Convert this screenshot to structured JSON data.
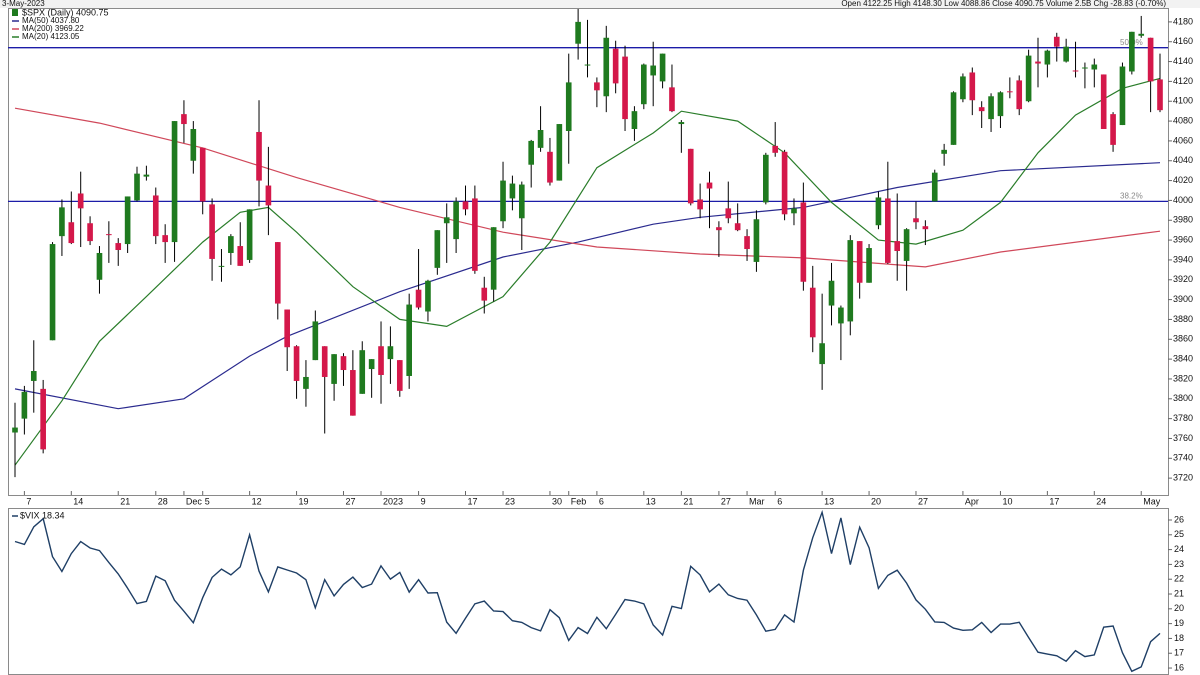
{
  "header": {
    "date": "3-May-2023",
    "quote": "Open 4122.25  High 4148.30  Low 4088.86  Close 4090.75  Volume 2.5B  Chg -28.83 (-0.70%)"
  },
  "chart_data": [
    {
      "type": "candlestick",
      "title": "$SPX (Daily) 4090.75",
      "colors": {
        "up": "#1f7a1f",
        "down": "#d4184a",
        "wick": "#000000"
      },
      "categories": [
        null,
        "7",
        null,
        null,
        null,
        null,
        "14",
        null,
        null,
        null,
        null,
        "21",
        null,
        null,
        null,
        "28",
        null,
        null,
        "Dec",
        null,
        "5",
        null,
        null,
        null,
        null,
        "12",
        null,
        null,
        null,
        null,
        "19",
        null,
        null,
        null,
        null,
        "27",
        null,
        null,
        null,
        "2023",
        null,
        null,
        null,
        "9",
        null,
        null,
        null,
        null,
        "17",
        null,
        null,
        null,
        "23",
        null,
        null,
        null,
        null,
        "30",
        null,
        "Feb",
        null,
        null,
        "6",
        null,
        null,
        null,
        null,
        "13",
        null,
        null,
        null,
        "21",
        null,
        null,
        null,
        "27",
        null,
        null,
        "Mar",
        null,
        null,
        "6",
        null,
        null,
        null,
        null,
        "13",
        null,
        null,
        null,
        null,
        "20",
        null,
        null,
        null,
        null,
        "27",
        null,
        null,
        null,
        null,
        "Apr",
        null,
        null,
        null,
        "10",
        null,
        null,
        null,
        null,
        "17",
        null,
        null,
        null,
        null,
        "24",
        null,
        null,
        null,
        null,
        "May",
        null,
        null
      ],
      "open": [
        3766,
        3780,
        3818,
        3810,
        3859,
        3964,
        3978,
        4007,
        3977,
        3920,
        3966,
        3957,
        3956,
        4000,
        4024,
        4005,
        3965,
        3958,
        4087,
        4040,
        4053,
        3996,
        3934,
        3947,
        3954,
        3940,
        4069,
        4015,
        3958,
        3890,
        3853,
        3810,
        3839,
        3853,
        3815,
        3843,
        3829,
        3805,
        3830,
        3853,
        3840,
        3839,
        3823,
        3910,
        3888,
        3932,
        3977,
        3961,
        3999,
        4002,
        3912,
        3910,
        3979,
        4002,
        3982,
        4036,
        4053,
        4049,
        4020,
        4070,
        4158,
        4137,
        4119,
        4105,
        4153,
        4145,
        4072,
        4097,
        4126,
        4120,
        4114,
        4077,
        4052,
        4001,
        4018,
        3973,
        3992,
        3977,
        3964,
        3938,
        3998,
        4055,
        4049,
        3987,
        3998,
        3912,
        3835,
        3894,
        3876,
        3878,
        3959,
        3917,
        3975,
        4002,
        3959,
        3939,
        3982,
        3974,
        3999,
        4047,
        4056,
        4102,
        4129,
        4094,
        4082,
        4085,
        4110,
        4121,
        4100,
        4140,
        4137,
        4165,
        4140,
        4131,
        4133,
        4132,
        4127,
        4087,
        4076,
        4130,
        4166,
        4164,
        4122
      ],
      "high": [
        3796,
        3813,
        3859,
        3819,
        3958,
        4001,
        4009,
        4029,
        3984,
        3954,
        3979,
        3962,
        4004,
        4034,
        4035,
        4013,
        3976,
        4080,
        4101,
        4080,
        4053,
        4002,
        3951,
        3966,
        3978,
        3991,
        4101,
        4054,
        3958,
        3890,
        3854,
        3839,
        3889,
        3853,
        3845,
        3846,
        3849,
        3858,
        3840,
        3878,
        3873,
        3839,
        3906,
        3951,
        3920,
        3970,
        3997,
        4003,
        4015,
        4015,
        3923,
        3973,
        4039,
        4025,
        4019,
        4061,
        4095,
        4063,
        4077,
        4148,
        4193,
        4182,
        4124,
        4176,
        4161,
        4156,
        4095,
        4138,
        4160,
        4148,
        4137,
        4081,
        4052,
        4017,
        4029,
        3979,
        4019,
        3997,
        3971,
        3990,
        4048,
        4079,
        4051,
        4002,
        4018,
        3934,
        3906,
        3937,
        3894,
        3965,
        3959,
        3956,
        4009,
        4039,
        4007,
        3972,
        3999,
        3980,
        4031,
        4057,
        4110,
        4128,
        4134,
        4100,
        4108,
        4110,
        4124,
        4126,
        4152,
        4164,
        4152,
        4169,
        4163,
        4160,
        4139,
        4143,
        4127,
        4089,
        4139,
        4170,
        4186,
        4164,
        4148
      ],
      "low": [
        3721,
        3764,
        3786,
        3745,
        3859,
        3944,
        3956,
        3953,
        3955,
        3906,
        3937,
        3934,
        3947,
        3999,
        4020,
        3956,
        3937,
        3938,
        4058,
        4027,
        3986,
        3919,
        3918,
        3935,
        3934,
        3937,
        3994,
        3965,
        3880,
        3828,
        3800,
        3792,
        3839,
        3765,
        3798,
        3813,
        3783,
        3805,
        3801,
        3795,
        3815,
        3802,
        3810,
        3890,
        3878,
        3925,
        3937,
        3947,
        3985,
        3926,
        3886,
        3898,
        3972,
        3990,
        3950,
        4013,
        4049,
        4015,
        4020,
        4037,
        4142,
        4124,
        4094,
        4089,
        4108,
        4070,
        4060,
        4092,
        4095,
        4113,
        4089,
        4048,
        3995,
        3982,
        3972,
        3943,
        3977,
        3969,
        3939,
        3928,
        3996,
        4044,
        3980,
        3975,
        3909,
        3847,
        3809,
        3874,
        3839,
        3864,
        3901,
        3917,
        3971,
        3936,
        3919,
        3909,
        3971,
        3955,
        3999,
        4035,
        4056,
        4099,
        4086,
        4073,
        4069,
        4073,
        4103,
        4086,
        4099,
        4114,
        4124,
        4140,
        4139,
        4124,
        4113,
        4114,
        4072,
        4049,
        4076,
        4127,
        4164,
        4089,
        4089
      ],
      "close": [
        3771,
        3807,
        3828,
        3749,
        3956,
        3993,
        3957,
        3992,
        3959,
        3947,
        3965,
        3950,
        4004,
        4027,
        4026,
        3964,
        3958,
        4080,
        4077,
        4072,
        3999,
        3941,
        3934,
        3964,
        3934,
        3991,
        4020,
        3995,
        3896,
        3852,
        3818,
        3822,
        3878,
        3822,
        3845,
        3829,
        3783,
        3849,
        3840,
        3824,
        3853,
        3808,
        3895,
        3892,
        3919,
        3970,
        3983,
        3999,
        3991,
        3929,
        3899,
        3973,
        4020,
        4017,
        4016,
        4060,
        4071,
        4018,
        4077,
        4119,
        4180,
        4137,
        4111,
        4164,
        4118,
        4082,
        4090,
        4137,
        4136,
        4148,
        4090,
        4079,
        3997,
        3991,
        4012,
        3970,
        3982,
        3970,
        3951,
        3981,
        4046,
        4048,
        3986,
        3992,
        3918,
        3862,
        3856,
        3919,
        3892,
        3960,
        3917,
        3952,
        4003,
        3937,
        3949,
        3971,
        3978,
        3971,
        4028,
        4051,
        4109,
        4125,
        4101,
        4090,
        4105,
        4109,
        4109,
        4092,
        4146,
        4138,
        4151,
        4155,
        4155,
        4130,
        4134,
        4137,
        4072,
        4056,
        4135,
        4170,
        4168,
        4120,
        4091
      ],
      "overlays": [
        {
          "name": "MA(50) 4037.80",
          "color": "#2b2b8f",
          "x": [
            0,
            11,
            18,
            25,
            29,
            41,
            52,
            60,
            68,
            73,
            84,
            94,
            105,
            122
          ],
          "values": [
            3810,
            3790,
            3800,
            3843,
            3863,
            3908,
            3943,
            3958,
            3976,
            3983,
            3993,
            4013,
            4030,
            4038
          ]
        },
        {
          "name": "MA(200) 3969.22",
          "color": "#d0485a",
          "x": [
            0,
            9,
            20,
            30,
            41,
            52,
            62,
            73,
            84,
            97,
            105,
            122
          ],
          "values": [
            4093,
            4078,
            4053,
            4023,
            3993,
            3968,
            3953,
            3946,
            3942,
            3933,
            3948,
            3969
          ]
        },
        {
          "name": "MA(20) 4123.05",
          "color": "#2a7d2a",
          "x": [
            0,
            5,
            9,
            14,
            20,
            24,
            27,
            30,
            36,
            41,
            46,
            52,
            57,
            62,
            68,
            71,
            77,
            82,
            87,
            92,
            96,
            101,
            105,
            109,
            113,
            118,
            122
          ],
          "values": [
            3733,
            3798,
            3858,
            3903,
            3958,
            3988,
            3993,
            3968,
            3913,
            3880,
            3873,
            3903,
            3958,
            4033,
            4068,
            4090,
            4080,
            4048,
            3998,
            3960,
            3956,
            3970,
            3998,
            4048,
            4086,
            4113,
            4123
          ]
        }
      ],
      "levels": [
        {
          "label": "50.0%",
          "value": 4154,
          "color": "#1c1ca8"
        },
        {
          "label": "38.2%",
          "value": 3999,
          "color": "#1c1ca8"
        }
      ],
      "ylim": [
        3703,
        4194
      ],
      "yticks": [
        3720,
        3740,
        3760,
        3780,
        3800,
        3820,
        3840,
        3860,
        3880,
        3900,
        3920,
        3940,
        3960,
        3980,
        4000,
        4020,
        4040,
        4060,
        4080,
        4100,
        4120,
        4140,
        4160,
        4180
      ]
    },
    {
      "type": "line",
      "title": "$VIX 18.34",
      "color": "#1f3f66",
      "values": [
        24.55,
        24.35,
        25.54,
        26.09,
        23.53,
        22.52,
        23.73,
        24.54,
        24.11,
        23.93,
        23.12,
        22.36,
        21.39,
        20.35,
        20.5,
        22.21,
        21.89,
        20.58,
        19.84,
        19.06,
        20.75,
        22.12,
        22.68,
        22.29,
        22.83,
        25.0,
        22.55,
        21.14,
        22.83,
        22.62,
        22.42,
        21.97,
        20.07,
        21.97,
        20.87,
        21.65,
        22.14,
        21.44,
        21.67,
        22.9,
        22.01,
        22.46,
        21.13,
        21.97,
        21.07,
        21.09,
        19.1,
        18.35,
        19.36,
        20.34,
        20.52,
        19.85,
        19.81,
        19.2,
        19.08,
        18.73,
        18.51,
        19.94,
        19.4,
        17.87,
        18.73,
        18.33,
        19.43,
        18.66,
        19.63,
        20.63,
        20.53,
        20.34,
        18.91,
        18.23,
        20.17,
        20.02,
        22.87,
        22.29,
        21.14,
        21.67,
        20.95,
        20.7,
        20.58,
        19.59,
        18.49,
        18.61,
        19.59,
        19.11,
        22.61,
        24.8,
        26.52,
        23.73,
        26.14,
        22.99,
        25.51,
        24.12,
        21.38,
        22.26,
        22.61,
        21.74,
        20.6,
        19.97,
        19.12,
        19.08,
        18.7,
        18.55,
        18.58,
        19.08,
        18.4,
        18.97,
        18.97,
        19.09,
        18.06,
        17.07,
        16.95,
        16.83,
        16.46,
        17.17,
        16.77,
        16.89,
        18.76,
        18.84,
        17.03,
        15.78,
        16.08,
        17.78,
        18.34
      ],
      "ylim": [
        15.53,
        26.81
      ],
      "yticks": [
        16,
        17,
        18,
        19,
        20,
        21,
        22,
        23,
        24,
        25,
        26
      ]
    }
  ]
}
